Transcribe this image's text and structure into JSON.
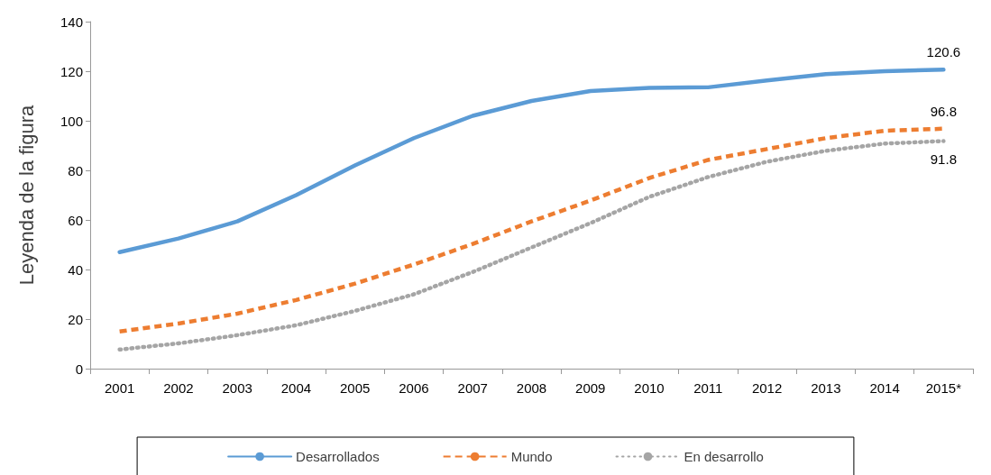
{
  "chart_data": {
    "type": "line",
    "ylabel": "Leyenda de la figura",
    "categories": [
      "2001",
      "2002",
      "2003",
      "2004",
      "2005",
      "2006",
      "2007",
      "2008",
      "2009",
      "2010",
      "2011",
      "2012",
      "2013",
      "2014",
      "2015*"
    ],
    "series": [
      {
        "name": "Desarrollados",
        "color": "#5b9bd5",
        "line_style": "solid",
        "values": [
          47,
          52.5,
          59.4,
          70,
          82,
          93,
          102,
          108,
          112,
          113.3,
          113.5,
          116.3,
          118.8,
          120,
          120.6
        ],
        "value_labels": [
          null,
          null,
          null,
          null,
          null,
          null,
          null,
          null,
          null,
          null,
          null,
          null,
          null,
          null,
          "120.6"
        ]
      },
      {
        "name": "Mundo",
        "color": "#ed7d31",
        "line_style": "dashed",
        "values": [
          15,
          18.2,
          22.2,
          27.7,
          34.3,
          42,
          50.3,
          59.4,
          67.8,
          76.9,
          84.2,
          88.6,
          93,
          96,
          96.8
        ],
        "value_labels": [
          null,
          null,
          null,
          null,
          null,
          null,
          null,
          null,
          null,
          null,
          null,
          null,
          null,
          null,
          "96.8"
        ]
      },
      {
        "name": "En desarrollo",
        "color": "#a5a5a5",
        "line_style": "dotted",
        "values": [
          7.7,
          10.2,
          13.5,
          17.5,
          23.3,
          30,
          39,
          48.9,
          58.7,
          69.3,
          77.3,
          83.5,
          87.9,
          90.8,
          91.8
        ],
        "value_labels": [
          null,
          null,
          null,
          null,
          null,
          null,
          null,
          null,
          null,
          null,
          null,
          null,
          null,
          null,
          "91.8"
        ]
      }
    ],
    "ylim": [
      0,
      140
    ],
    "yticks": [
      0,
      20,
      40,
      60,
      80,
      100,
      120,
      140
    ],
    "grid": false,
    "legend": "bottom",
    "marker": "none"
  }
}
